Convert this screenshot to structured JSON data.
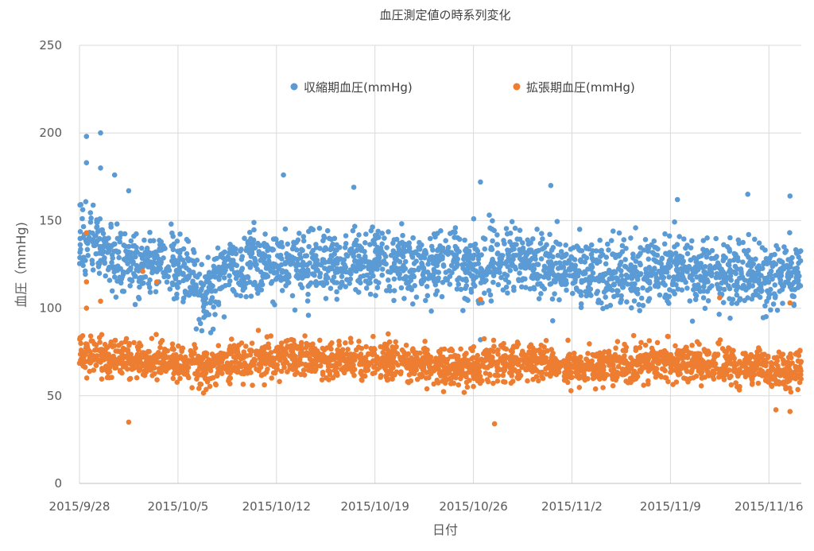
{
  "chart_data": {
    "type": "scatter",
    "title": "血圧測定値の時系列変化",
    "xlabel": "日付",
    "ylabel": "血圧（mmHg)",
    "ylim": [
      0,
      250
    ],
    "yticks": [
      "0",
      "50",
      "100",
      "150",
      "200",
      "250"
    ],
    "xticks": [
      "2015/9/28",
      "2015/10/5",
      "2015/10/12",
      "2015/10/19",
      "2015/10/26",
      "2015/11/2",
      "2015/11/9",
      "2015/11/16"
    ],
    "x_start_date": "2015/9/28",
    "x_end_date": "2015/11/18",
    "grid": "vertical-and-horizontal",
    "legend_position": "top-center",
    "series": [
      {
        "name": "収縮期血圧(mmHg)",
        "color": "#5B9BD5",
        "trend": [
          [
            "2015/9/28",
            138
          ],
          [
            "2015/9/29",
            142
          ],
          [
            "2015/9/30",
            128
          ],
          [
            "2015/10/1",
            126
          ],
          [
            "2015/10/2",
            122
          ],
          [
            "2015/10/3",
            124
          ],
          [
            "2015/10/4",
            126
          ],
          [
            "2015/10/5",
            124
          ],
          [
            "2015/10/6",
            114
          ],
          [
            "2015/10/7",
            108
          ],
          [
            "2015/10/8",
            118
          ],
          [
            "2015/10/9",
            124
          ],
          [
            "2015/10/12",
            126
          ],
          [
            "2015/10/15",
            124
          ],
          [
            "2015/10/19",
            126
          ],
          [
            "2015/10/22",
            124
          ],
          [
            "2015/10/26",
            124
          ],
          [
            "2015/10/29",
            128
          ],
          [
            "2015/11/2",
            120
          ],
          [
            "2015/11/5",
            120
          ],
          [
            "2015/11/9",
            122
          ],
          [
            "2015/11/12",
            120
          ],
          [
            "2015/11/16",
            118
          ],
          [
            "2015/11/18",
            120
          ]
        ],
        "spread": 14,
        "outliers": [
          [
            "2015/9/28",
            183
          ],
          [
            "2015/9/28",
            198
          ],
          [
            "2015/9/29",
            200
          ],
          [
            "2015/9/29",
            180
          ],
          [
            "2015/9/30",
            176
          ],
          [
            "2015/10/1",
            167
          ],
          [
            "2015/10/12",
            176
          ],
          [
            "2015/10/17",
            169
          ],
          [
            "2015/10/26",
            172
          ],
          [
            "2015/10/31",
            170
          ],
          [
            "2015/11/9",
            162
          ],
          [
            "2015/11/14",
            165
          ],
          [
            "2015/11/17",
            164
          ],
          [
            "2015/10/7",
            88
          ],
          [
            "2015/10/26",
            82
          ]
        ]
      },
      {
        "name": "拡張期血圧(mmHg)",
        "color": "#ED7D31",
        "trend": [
          [
            "2015/9/28",
            74
          ],
          [
            "2015/9/30",
            72
          ],
          [
            "2015/10/2",
            70
          ],
          [
            "2015/10/5",
            68
          ],
          [
            "2015/10/7",
            66
          ],
          [
            "2015/10/9",
            70
          ],
          [
            "2015/10/12",
            72
          ],
          [
            "2015/10/15",
            70
          ],
          [
            "2015/10/19",
            70
          ],
          [
            "2015/10/22",
            68
          ],
          [
            "2015/10/26",
            66
          ],
          [
            "2015/10/29",
            70
          ],
          [
            "2015/11/2",
            66
          ],
          [
            "2015/11/5",
            66
          ],
          [
            "2015/11/9",
            70
          ],
          [
            "2015/11/12",
            68
          ],
          [
            "2015/11/16",
            66
          ],
          [
            "2015/11/18",
            64
          ]
        ],
        "spread": 8,
        "outliers": [
          [
            "2015/9/28",
            143
          ],
          [
            "2015/9/28",
            100
          ],
          [
            "2015/9/28",
            115
          ],
          [
            "2015/9/29",
            104
          ],
          [
            "2015/10/2",
            121
          ],
          [
            "2015/10/3",
            115
          ],
          [
            "2015/10/1",
            35
          ],
          [
            "2015/10/27",
            34
          ],
          [
            "2015/10/26",
            105
          ],
          [
            "2015/11/12",
            106
          ],
          [
            "2015/11/17",
            103
          ],
          [
            "2015/11/17",
            41
          ],
          [
            "2015/11/16",
            42
          ]
        ]
      }
    ]
  }
}
